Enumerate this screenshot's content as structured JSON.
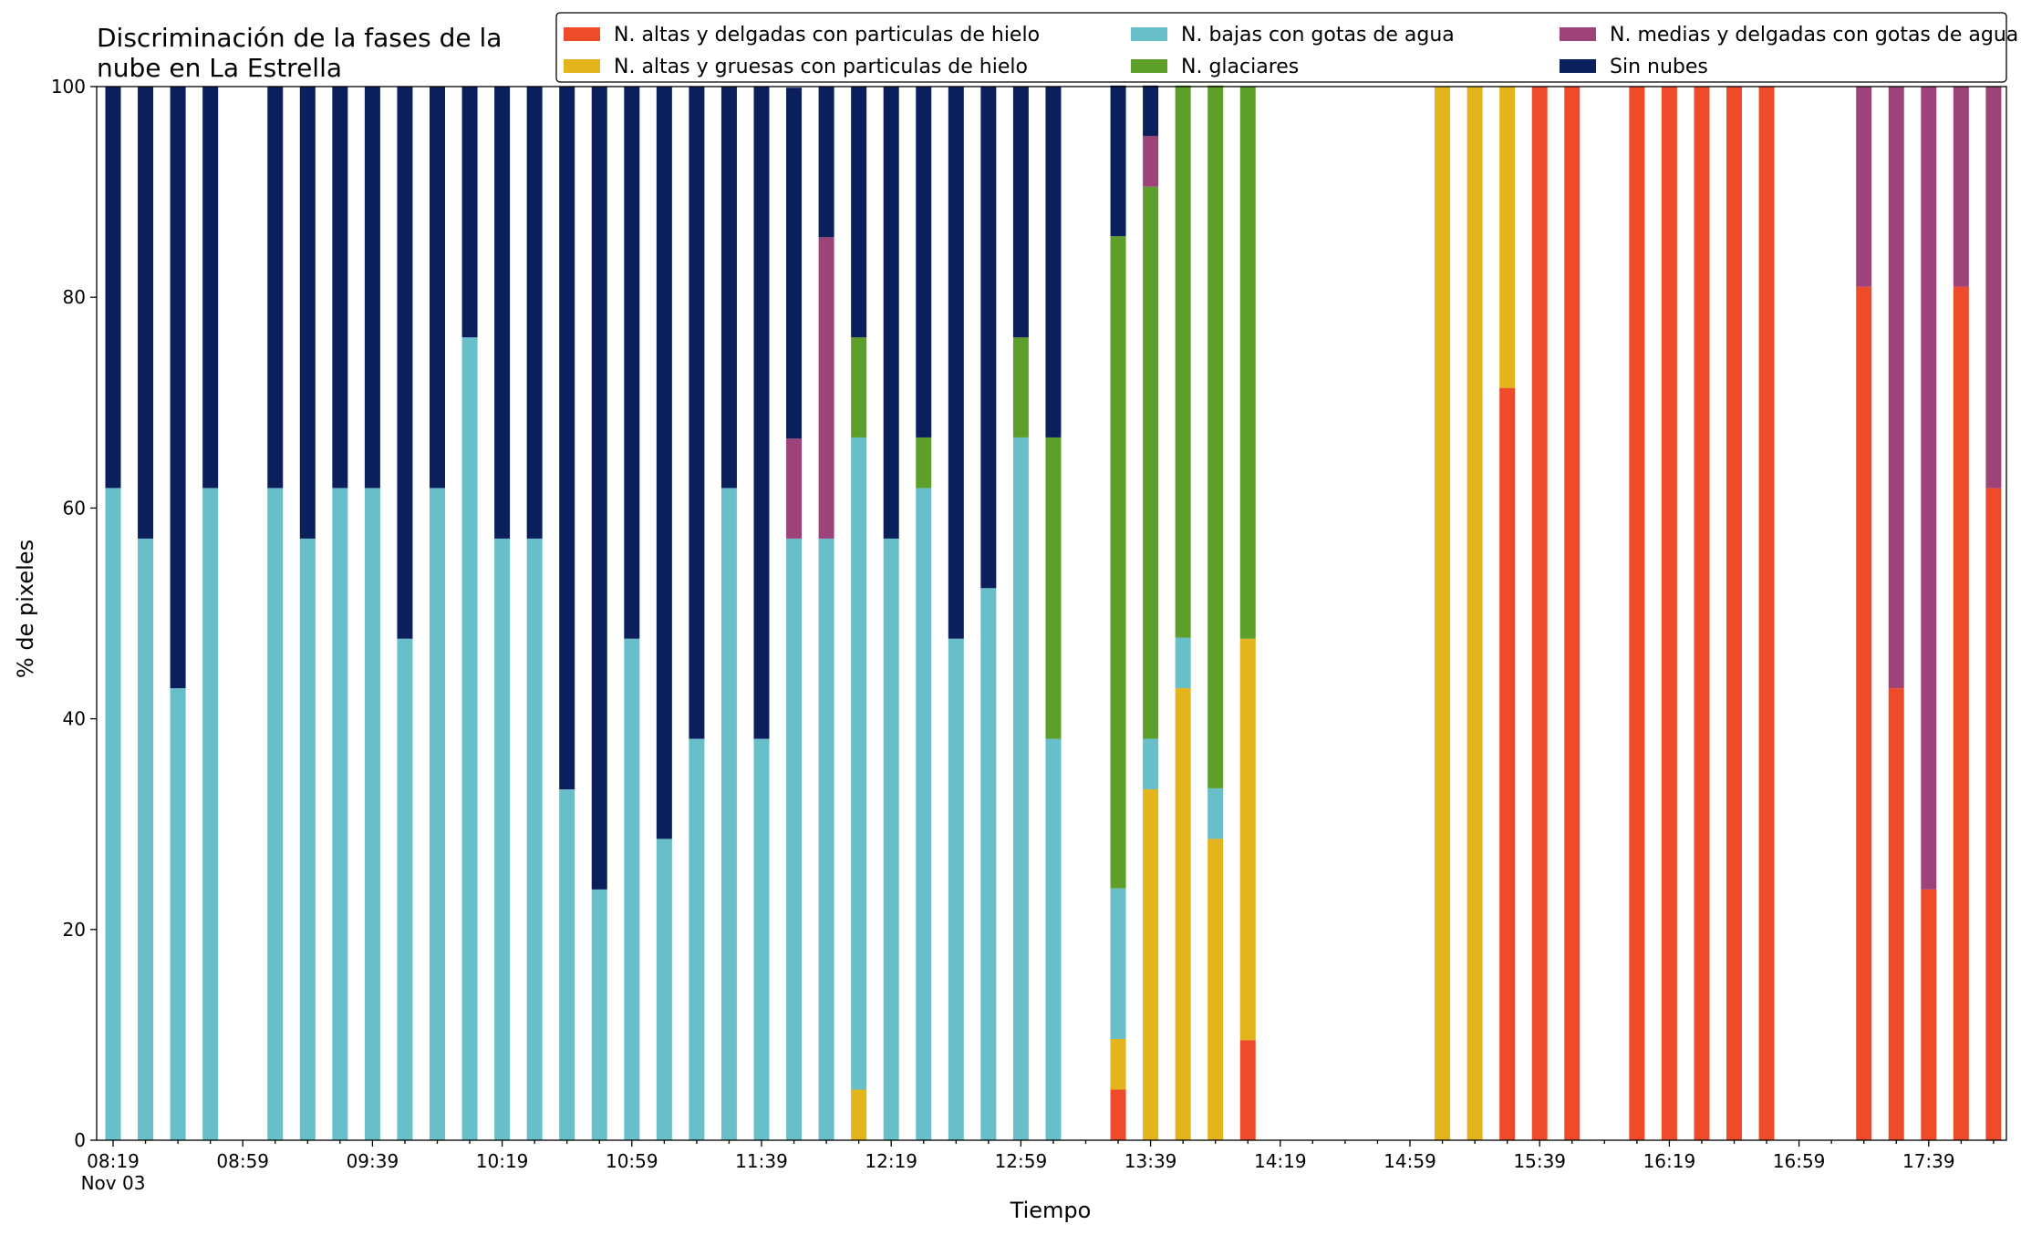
{
  "chart_data": {
    "type": "bar",
    "stacked": true,
    "title_lines": [
      "Discriminación de la fases de la",
      "nube en La Estrella"
    ],
    "xlabel": "Tiempo",
    "ylabel": "% de pixeles",
    "ylim": [
      0,
      100
    ],
    "yticks": [
      0,
      20,
      40,
      60,
      80,
      100
    ],
    "grid": false,
    "legend_position": "top-right",
    "x_tick_labels": [
      "08:19",
      "08:59",
      "09:39",
      "10:19",
      "10:59",
      "11:39",
      "12:19",
      "12:59",
      "13:39",
      "14:19",
      "14:59",
      "15:39",
      "16:19",
      "16:59",
      "17:39"
    ],
    "x_date_label": "Nov 03",
    "x_start": "08:19",
    "x_step_minutes": 10,
    "series": [
      {
        "name": "N. altas y delgadas con particulas de hielo",
        "color": "#ee4b2b",
        "values": [
          0,
          0,
          0,
          0,
          0,
          0,
          0,
          0,
          0,
          0,
          0,
          0,
          0,
          0,
          0,
          0,
          0,
          0,
          0,
          0,
          0,
          0,
          0,
          0,
          0,
          0,
          0,
          0,
          0,
          0,
          0,
          4.8,
          0,
          0,
          0,
          9.5,
          0,
          0,
          0,
          0,
          0,
          0,
          0,
          71.4,
          100,
          100,
          0,
          100,
          100,
          100,
          100,
          100,
          0,
          0,
          81,
          42.9,
          23.8,
          81,
          61.9
        ]
      },
      {
        "name": "N. altas y gruesas con particulas de hielo",
        "color": "#e4b41c",
        "values": [
          0,
          0,
          0,
          0,
          0,
          0,
          0,
          0,
          0,
          0,
          0,
          0,
          0,
          0,
          0,
          0,
          0,
          0,
          0,
          0,
          0,
          0,
          0,
          4.8,
          0,
          0,
          0,
          0,
          0,
          0,
          0,
          4.8,
          33.3,
          42.9,
          28.6,
          38.1,
          0,
          0,
          0,
          0,
          0,
          100,
          100,
          28.6,
          0,
          0,
          0,
          0,
          0,
          0,
          0,
          0,
          0,
          0,
          0,
          0,
          0,
          0,
          0
        ]
      },
      {
        "name": "N. bajas con gotas de agua",
        "color": "#68bfc9",
        "values": [
          61.9,
          57.1,
          42.9,
          61.9,
          0,
          61.9,
          57.1,
          61.9,
          61.9,
          47.6,
          61.9,
          76.2,
          57.1,
          57.1,
          33.3,
          23.8,
          47.6,
          28.6,
          38.1,
          61.9,
          38.1,
          57.1,
          57.1,
          61.9,
          57.1,
          61.9,
          47.6,
          52.4,
          66.7,
          38.1,
          0,
          14.3,
          4.8,
          4.8,
          4.8,
          0,
          0,
          0,
          0,
          0,
          0,
          0,
          0,
          0,
          0,
          0,
          0,
          0,
          0,
          0,
          0,
          0,
          0,
          0,
          0,
          0,
          0,
          0,
          0
        ]
      },
      {
        "name": "N. glaciares",
        "color": "#5e9e2a",
        "values": [
          0,
          0,
          0,
          0,
          0,
          0,
          0,
          0,
          0,
          0,
          0,
          0,
          0,
          0,
          0,
          0,
          0,
          0,
          0,
          0,
          0,
          0,
          0,
          9.5,
          0,
          4.8,
          0,
          0,
          9.5,
          28.6,
          0,
          61.9,
          52.4,
          52.4,
          66.7,
          52.4,
          0,
          0,
          0,
          0,
          0,
          0,
          0,
          0,
          0,
          0,
          0,
          0,
          0,
          0,
          0,
          0,
          0,
          0,
          0,
          0,
          0,
          0,
          0
        ]
      },
      {
        "name": "N. medias y delgadas con gotas de agua",
        "color": "#9e4379",
        "values": [
          0,
          0,
          0,
          0,
          0,
          0,
          0,
          0,
          0,
          0,
          0,
          0,
          0,
          0,
          0,
          0,
          0,
          0,
          0,
          0,
          0,
          9.5,
          28.6,
          0,
          0,
          0,
          0,
          0,
          0,
          0,
          0,
          0,
          4.8,
          0,
          0,
          0,
          0,
          0,
          0,
          0,
          0,
          0,
          0,
          0,
          0,
          0,
          0,
          0,
          0,
          0,
          0,
          0,
          0,
          0,
          19,
          57.1,
          76.2,
          19,
          38.1
        ]
      },
      {
        "name": "Sin nubes",
        "color": "#0b1f5d",
        "values": [
          38.1,
          42.9,
          57.1,
          38.1,
          0,
          38.1,
          42.9,
          38.1,
          38.1,
          52.4,
          38.1,
          23.8,
          42.9,
          42.9,
          66.7,
          76.2,
          52.4,
          71.4,
          61.9,
          38.1,
          61.9,
          33.3,
          14.3,
          23.8,
          42.9,
          33.3,
          52.4,
          47.6,
          23.8,
          33.3,
          0,
          14.3,
          4.8,
          0,
          0,
          0,
          0,
          0,
          0,
          0,
          0,
          0,
          0,
          0,
          0,
          0,
          0,
          0,
          0,
          0,
          0,
          0,
          0,
          0,
          0,
          0,
          0,
          0,
          0
        ]
      }
    ]
  }
}
